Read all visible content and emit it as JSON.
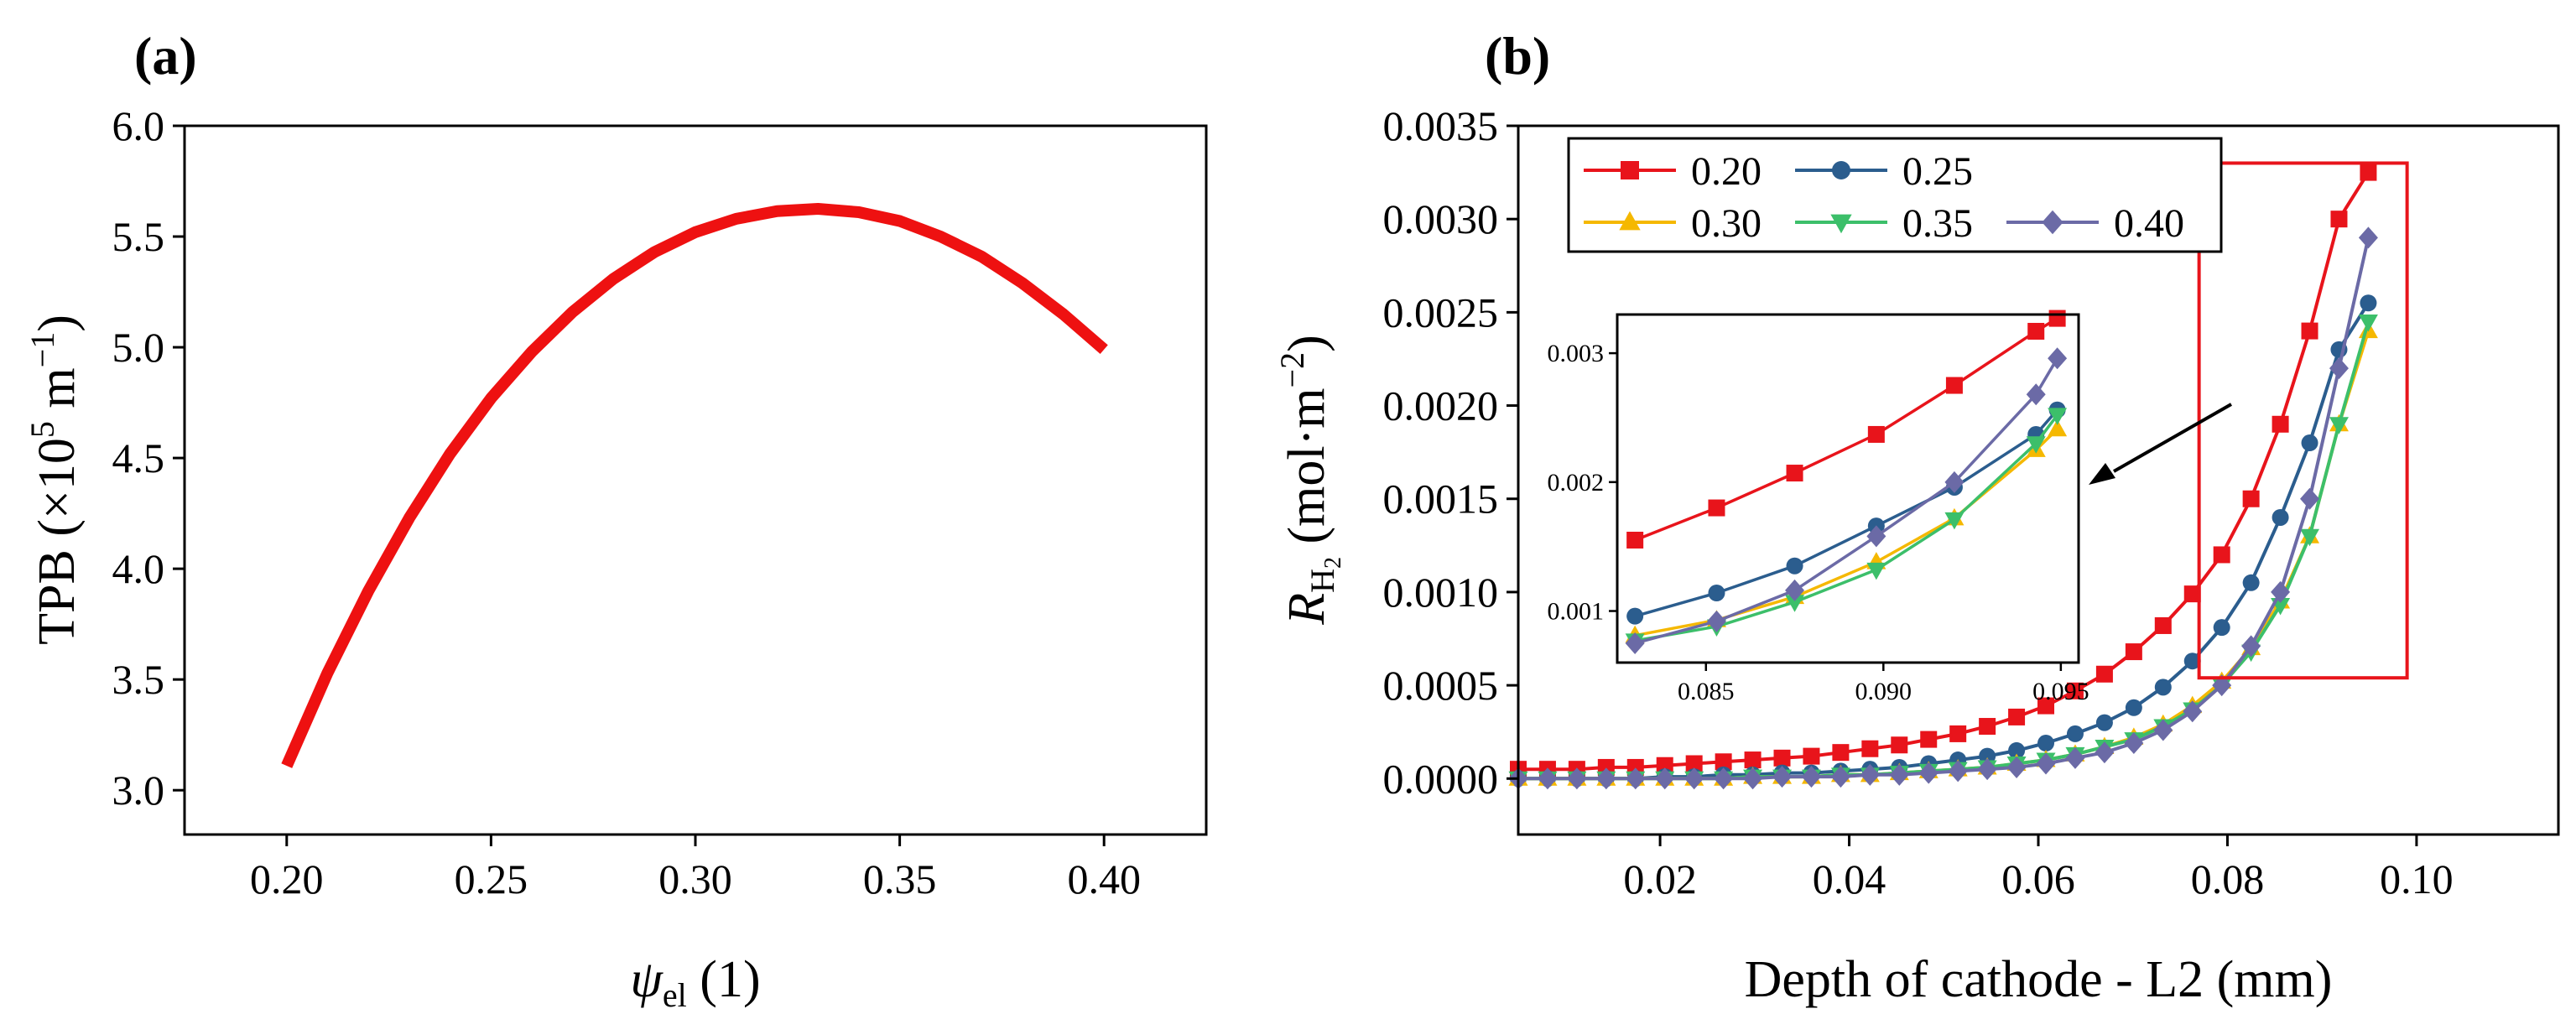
{
  "chart_data": [
    {
      "panel": "(a)",
      "type": "line",
      "title": "",
      "xlabel_symbol": "ψ",
      "xlabel_sub": "el",
      "xlabel_suffix": " (1)",
      "ylabel_prefix": "TPB (×10",
      "ylabel_exp": "5",
      "ylabel_mid": " m",
      "ylabel_exp2": "−1",
      "ylabel_suffix": ")",
      "xlim": [
        0.175,
        0.425
      ],
      "ylim": [
        2.8,
        6.0
      ],
      "xticks": [
        0.2,
        0.25,
        0.3,
        0.35,
        0.4
      ],
      "xtick_labels": [
        "0.20",
        "0.25",
        "0.30",
        "0.35",
        "0.40"
      ],
      "yticks": [
        3.0,
        3.5,
        4.0,
        4.5,
        5.0,
        5.5,
        6.0
      ],
      "ytick_labels": [
        "3.0",
        "3.5",
        "4.0",
        "4.5",
        "5.0",
        "5.5",
        "6.0"
      ],
      "series": [
        {
          "name": "TPB",
          "color": "#ee1111",
          "x": [
            0.2,
            0.21,
            0.22,
            0.23,
            0.24,
            0.25,
            0.26,
            0.27,
            0.28,
            0.29,
            0.3,
            0.31,
            0.32,
            0.33,
            0.34,
            0.35,
            0.36,
            0.37,
            0.38,
            0.39,
            0.4
          ],
          "y": [
            3.11,
            3.53,
            3.9,
            4.23,
            4.52,
            4.77,
            4.98,
            5.16,
            5.31,
            5.43,
            5.52,
            5.58,
            5.615,
            5.625,
            5.61,
            5.57,
            5.5,
            5.41,
            5.29,
            5.15,
            4.99
          ]
        }
      ]
    },
    {
      "panel": "(b)",
      "type": "line",
      "title": "",
      "xlabel": "Depth of cathode - L2 (mm)",
      "ylabel_symbol": "R",
      "ylabel_sub": "H",
      "ylabel_subsub": "2",
      "ylabel_suffix": " (mol·m",
      "ylabel_exp": "−2",
      "ylabel_end": ")",
      "xlim": [
        0.005,
        0.115
      ],
      "ylim": [
        -0.0003,
        0.0035
      ],
      "xticks": [
        0.02,
        0.04,
        0.06,
        0.08,
        0.1
      ],
      "xtick_labels": [
        "0.02",
        "0.04",
        "0.06",
        "0.08",
        "0.10"
      ],
      "yticks": [
        0.0,
        0.0005,
        0.001,
        0.0015,
        0.002,
        0.0025,
        0.003,
        0.0035
      ],
      "ytick_labels": [
        "0.0000",
        "0.0005",
        "0.0010",
        "0.0015",
        "0.0020",
        "0.0025",
        "0.0030",
        "0.0035"
      ],
      "x": [
        0.005,
        0.0081,
        0.0112,
        0.0143,
        0.0174,
        0.0205,
        0.0236,
        0.0267,
        0.0298,
        0.0329,
        0.036,
        0.0391,
        0.0422,
        0.0453,
        0.0484,
        0.0515,
        0.0546,
        0.0577,
        0.0608,
        0.0639,
        0.067,
        0.0701,
        0.0732,
        0.0763,
        0.0794,
        0.0825,
        0.0856,
        0.0887,
        0.0918,
        0.0949
      ],
      "series": [
        {
          "name": "0.20",
          "color": "#e8141b",
          "marker": "square",
          "y": [
            5e-05,
            5e-05,
            5e-05,
            6e-05,
            6e-05,
            7e-05,
            8e-05,
            9e-05,
            0.0001,
            0.00011,
            0.00012,
            0.00014,
            0.00016,
            0.00018,
            0.00021,
            0.00024,
            0.00028,
            0.00033,
            0.00039,
            0.00047,
            0.00056,
            0.00068,
            0.00082,
            0.00099,
            0.0012,
            0.0015,
            0.0019,
            0.0024,
            0.003,
            0.00325
          ]
        },
        {
          "name": "0.25",
          "color": "#2b5d8e",
          "marker": "circle",
          "y": [
            0.0,
            0.0,
            0.0,
            0.0,
            0.0,
            1e-05,
            1e-05,
            2e-05,
            2e-05,
            3e-05,
            3e-05,
            4e-05,
            5e-05,
            6e-05,
            8e-05,
            0.0001,
            0.00012,
            0.00015,
            0.00019,
            0.00024,
            0.0003,
            0.00038,
            0.00049,
            0.00063,
            0.00081,
            0.00105,
            0.0014,
            0.0018,
            0.0023,
            0.00255
          ]
        },
        {
          "name": "0.30",
          "color": "#f5b800",
          "marker": "triangle-up",
          "y": [
            0.0,
            0.0,
            0.0,
            0.0,
            0.0,
            0.0,
            0.0,
            0.0,
            1e-05,
            1e-05,
            1e-05,
            2e-05,
            2e-05,
            3e-05,
            4e-05,
            5e-05,
            6e-05,
            8e-05,
            0.0001,
            0.00013,
            0.00017,
            0.00022,
            0.00029,
            0.00039,
            0.00052,
            0.0007,
            0.00095,
            0.0013,
            0.0019,
            0.0024
          ]
        },
        {
          "name": "0.35",
          "color": "#3cbf6a",
          "marker": "triangle-down",
          "y": [
            0.0,
            0.0,
            0.0,
            0.0,
            0.0,
            0.0,
            0.0,
            0.0,
            1e-05,
            1e-05,
            1e-05,
            2e-05,
            2e-05,
            3e-05,
            4e-05,
            5e-05,
            6e-05,
            8e-05,
            0.0001,
            0.00013,
            0.00017,
            0.00021,
            0.00028,
            0.00037,
            0.0005,
            0.00068,
            0.00093,
            0.0013,
            0.0019,
            0.00245
          ]
        },
        {
          "name": "0.40",
          "color": "#6b6aa6",
          "marker": "diamond",
          "y": [
            0.0,
            0.0,
            0.0,
            0.0,
            0.0,
            0.0,
            0.0,
            0.0,
            0.0,
            1e-05,
            1e-05,
            1e-05,
            2e-05,
            2e-05,
            3e-05,
            4e-05,
            5e-05,
            6e-05,
            8e-05,
            0.00011,
            0.00014,
            0.00019,
            0.00026,
            0.00036,
            0.0005,
            0.00071,
            0.001,
            0.0015,
            0.0022,
            0.0029
          ]
        }
      ],
      "legend": {
        "placement": "top-left",
        "entries": [
          "0.20",
          "0.25",
          "0.30",
          "0.35",
          "0.40"
        ]
      },
      "highlight_box": {
        "color": "#e8141b",
        "xrange": [
          0.077,
          0.099
        ],
        "yrange": [
          0.00054,
          0.0033
        ]
      },
      "inset": {
        "xlim": [
          0.0825,
          0.0955
        ],
        "ylim": [
          0.0006,
          0.0033
        ],
        "xticks": [
          0.085,
          0.09,
          0.095
        ],
        "xtick_labels": [
          "0.085",
          "0.090",
          "0.095"
        ],
        "yticks": [
          0.001,
          0.002,
          0.003
        ],
        "ytick_labels": [
          "0.001",
          "0.002",
          "0.003"
        ],
        "x": [
          0.083,
          0.0853,
          0.0875,
          0.0898,
          0.092,
          0.0943,
          0.0949
        ],
        "series": [
          {
            "name": "0.20",
            "y": [
              0.00155,
              0.0018,
              0.00207,
              0.00237,
              0.00275,
              0.00317,
              0.00327
            ]
          },
          {
            "name": "0.25",
            "y": [
              0.00096,
              0.00114,
              0.00135,
              0.00166,
              0.00196,
              0.00237,
              0.00256
            ]
          },
          {
            "name": "0.30",
            "y": [
              0.00081,
              0.00093,
              0.00111,
              0.00138,
              0.00172,
              0.00225,
              0.00241
            ]
          },
          {
            "name": "0.35",
            "y": [
              0.00077,
              0.00088,
              0.00107,
              0.00132,
              0.00171,
              0.0023,
              0.00252
            ]
          },
          {
            "name": "0.40",
            "y": [
              0.00075,
              0.00092,
              0.00116,
              0.00158,
              0.002,
              0.00268,
              0.00296
            ]
          }
        ]
      }
    }
  ]
}
